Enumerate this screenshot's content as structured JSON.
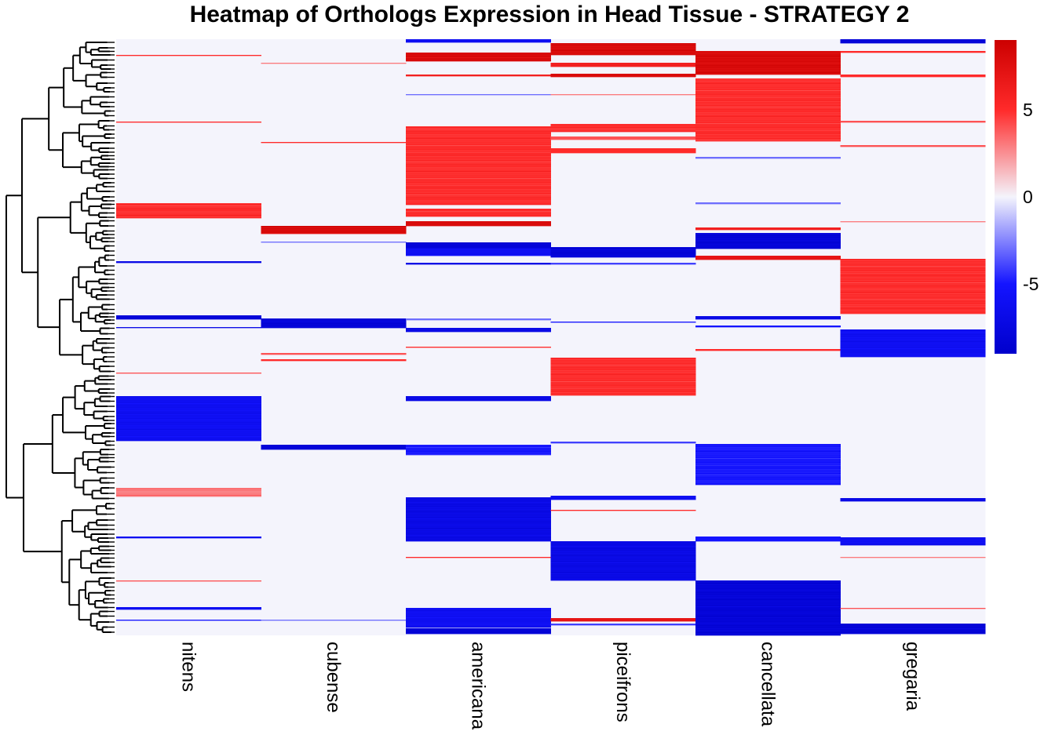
{
  "chart_data": {
    "type": "heatmap",
    "title": "Heatmap of Orthologs Expression in Head Tissue - STRATEGY 2",
    "columns": [
      "nitens",
      "cubense",
      "americana",
      "piceifrons",
      "cancellata",
      "gregaria"
    ],
    "row_count": 760,
    "row_dendrogram": true,
    "color_scale": {
      "min": -9,
      "max": 9,
      "stops": [
        {
          "value": -9,
          "color": "#0000cc"
        },
        {
          "value": -5,
          "color": "#1414ff"
        },
        {
          "value": 0,
          "color": "#f4f4fc"
        },
        {
          "value": 5,
          "color": "#ff2a2a"
        },
        {
          "value": 9,
          "color": "#cc0000"
        }
      ],
      "ticks": [
        5,
        0,
        -5
      ],
      "tick_labels": [
        "5",
        "0",
        "-5"
      ]
    },
    "background_value": 0,
    "row_blocks": [
      {
        "column": "nitens",
        "rows": [
          [
            20,
            21,
            5
          ],
          [
            105,
            106,
            5
          ],
          [
            209,
            228,
            5
          ],
          [
            283,
            285,
            -7
          ],
          [
            352,
            357,
            -8
          ],
          [
            367,
            368,
            -7
          ],
          [
            425,
            426,
            4
          ],
          [
            455,
            512,
            -6
          ],
          [
            572,
            583,
            3
          ],
          [
            634,
            636,
            -6
          ],
          [
            690,
            691,
            4
          ],
          [
            724,
            727,
            -6
          ],
          [
            740,
            741,
            -5
          ]
        ]
      },
      {
        "column": "cubense",
        "rows": [
          [
            30,
            31,
            3
          ],
          [
            131,
            132,
            5
          ],
          [
            238,
            248,
            8
          ],
          [
            258,
            259,
            -3
          ],
          [
            356,
            368,
            -8
          ],
          [
            400,
            402,
            4
          ],
          [
            408,
            410,
            5
          ],
          [
            517,
            523,
            -8
          ],
          [
            740,
            741,
            -3
          ]
        ]
      },
      {
        "column": "americana",
        "rows": [
          [
            0,
            4,
            -6
          ],
          [
            17,
            28,
            8
          ],
          [
            45,
            47,
            6
          ],
          [
            70,
            71,
            -3
          ],
          [
            111,
            211,
            5
          ],
          [
            216,
            226,
            5
          ],
          [
            232,
            238,
            8
          ],
          [
            259,
            266,
            -8
          ],
          [
            266,
            276,
            -6
          ],
          [
            285,
            287,
            -7
          ],
          [
            356,
            358,
            -3
          ],
          [
            368,
            373,
            -7
          ],
          [
            392,
            393,
            5
          ],
          [
            455,
            461,
            -7
          ],
          [
            517,
            530,
            -5
          ],
          [
            584,
            640,
            -7
          ],
          [
            660,
            661,
            5
          ],
          [
            725,
            750,
            -6
          ],
          [
            751,
            758,
            -8
          ]
        ]
      },
      {
        "column": "piceifrons",
        "rows": [
          [
            5,
            20,
            8
          ],
          [
            30,
            35,
            6
          ],
          [
            44,
            48,
            8
          ],
          [
            70,
            71,
            3
          ],
          [
            108,
            118,
            5
          ],
          [
            124,
            128,
            4
          ],
          [
            139,
            145,
            5
          ],
          [
            265,
            278,
            -8
          ],
          [
            285,
            287,
            -4
          ],
          [
            360,
            361,
            -5
          ],
          [
            406,
            454,
            5
          ],
          [
            513,
            515,
            -4
          ],
          [
            582,
            587,
            -6
          ],
          [
            600,
            601,
            5
          ],
          [
            640,
            690,
            -7
          ],
          [
            738,
            742,
            7
          ],
          [
            745,
            747,
            -4
          ]
        ]
      },
      {
        "column": "cancellata",
        "rows": [
          [
            15,
            45,
            8
          ],
          [
            50,
            130,
            5
          ],
          [
            150,
            152,
            -3
          ],
          [
            208,
            210,
            -3
          ],
          [
            240,
            243,
            6
          ],
          [
            247,
            267,
            -8
          ],
          [
            276,
            281,
            7
          ],
          [
            353,
            357,
            -7
          ],
          [
            365,
            367,
            -5
          ],
          [
            395,
            397,
            5
          ],
          [
            516,
            568,
            -5
          ],
          [
            634,
            640,
            -5
          ],
          [
            690,
            760,
            -8
          ]
        ]
      },
      {
        "column": "gregaria",
        "rows": [
          [
            0,
            5,
            -8
          ],
          [
            15,
            17,
            5
          ],
          [
            45,
            48,
            5
          ],
          [
            104,
            106,
            4
          ],
          [
            135,
            137,
            4
          ],
          [
            232,
            233,
            3
          ],
          [
            280,
            350,
            5
          ],
          [
            370,
            405,
            -6
          ],
          [
            585,
            589,
            -7
          ],
          [
            635,
            645,
            -6
          ],
          [
            660,
            661,
            3
          ],
          [
            725,
            726,
            4
          ],
          [
            745,
            758,
            -8
          ]
        ]
      }
    ]
  }
}
